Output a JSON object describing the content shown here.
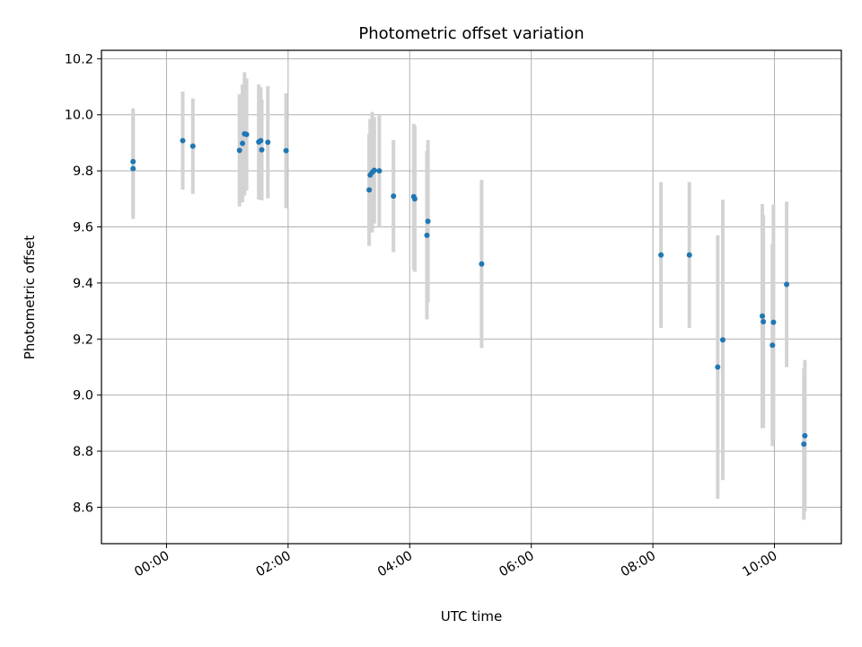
{
  "chart_data": {
    "type": "scatter",
    "title": "Photometric offset variation",
    "xlabel": "UTC time",
    "ylabel": "Photometric offset",
    "x_ticks": [
      "00:00",
      "02:00",
      "04:00",
      "06:00",
      "08:00",
      "10:00"
    ],
    "x_tick_hours": [
      0,
      2,
      4,
      6,
      8,
      10
    ],
    "y_ticks": [
      "8.6",
      "8.8",
      "9.0",
      "9.2",
      "9.4",
      "9.6",
      "9.8",
      "10.0",
      "10.2"
    ],
    "xlim_hours": [
      -1.07,
      11.1
    ],
    "ylim": [
      8.47,
      10.23
    ],
    "grid": true,
    "marker_color": "#1f77b4",
    "errorbar_color": "#d3d3d3",
    "points": [
      {
        "t": "23:27",
        "y": 9.833,
        "err": 0.19
      },
      {
        "t": "23:27",
        "y": 9.808,
        "err": 0.18
      },
      {
        "t": "00:16",
        "y": 9.908,
        "err": 0.175
      },
      {
        "t": "00:26",
        "y": 9.888,
        "err": 0.17
      },
      {
        "t": "01:12",
        "y": 9.873,
        "err": 0.2
      },
      {
        "t": "01:15",
        "y": 9.898,
        "err": 0.21
      },
      {
        "t": "01:17",
        "y": 9.932,
        "err": 0.22
      },
      {
        "t": "01:19",
        "y": 9.93,
        "err": 0.2
      },
      {
        "t": "01:31",
        "y": 9.903,
        "err": 0.205
      },
      {
        "t": "01:33",
        "y": 9.908,
        "err": 0.19
      },
      {
        "t": "01:34",
        "y": 9.875,
        "err": 0.18
      },
      {
        "t": "01:40",
        "y": 9.902,
        "err": 0.2
      },
      {
        "t": "01:58",
        "y": 9.872,
        "err": 0.205
      },
      {
        "t": "03:20",
        "y": 9.732,
        "err": 0.2
      },
      {
        "t": "03:21",
        "y": 9.785,
        "err": 0.2
      },
      {
        "t": "03:23",
        "y": 9.795,
        "err": 0.215
      },
      {
        "t": "03:25",
        "y": 9.802,
        "err": 0.19
      },
      {
        "t": "03:30",
        "y": 9.8,
        "err": 0.2
      },
      {
        "t": "03:44",
        "y": 9.71,
        "err": 0.2
      },
      {
        "t": "04:04",
        "y": 9.708,
        "err": 0.26
      },
      {
        "t": "04:05",
        "y": 9.7,
        "err": 0.26
      },
      {
        "t": "04:17",
        "y": 9.57,
        "err": 0.3
      },
      {
        "t": "04:18",
        "y": 9.62,
        "err": 0.29
      },
      {
        "t": "05:11",
        "y": 9.468,
        "err": 0.3
      },
      {
        "t": "08:08",
        "y": 9.5,
        "err": 0.26
      },
      {
        "t": "08:36",
        "y": 9.5,
        "err": 0.26
      },
      {
        "t": "09:04",
        "y": 9.1,
        "err": 0.47
      },
      {
        "t": "09:09",
        "y": 9.197,
        "err": 0.5
      },
      {
        "t": "09:48",
        "y": 9.282,
        "err": 0.4
      },
      {
        "t": "09:49",
        "y": 9.262,
        "err": 0.38
      },
      {
        "t": "09:58",
        "y": 9.178,
        "err": 0.36
      },
      {
        "t": "09:59",
        "y": 9.26,
        "err": 0.42
      },
      {
        "t": "10:12",
        "y": 9.395,
        "err": 0.295
      },
      {
        "t": "10:29",
        "y": 8.825,
        "err": 0.27
      },
      {
        "t": "10:30",
        "y": 8.855,
        "err": 0.27
      }
    ]
  }
}
